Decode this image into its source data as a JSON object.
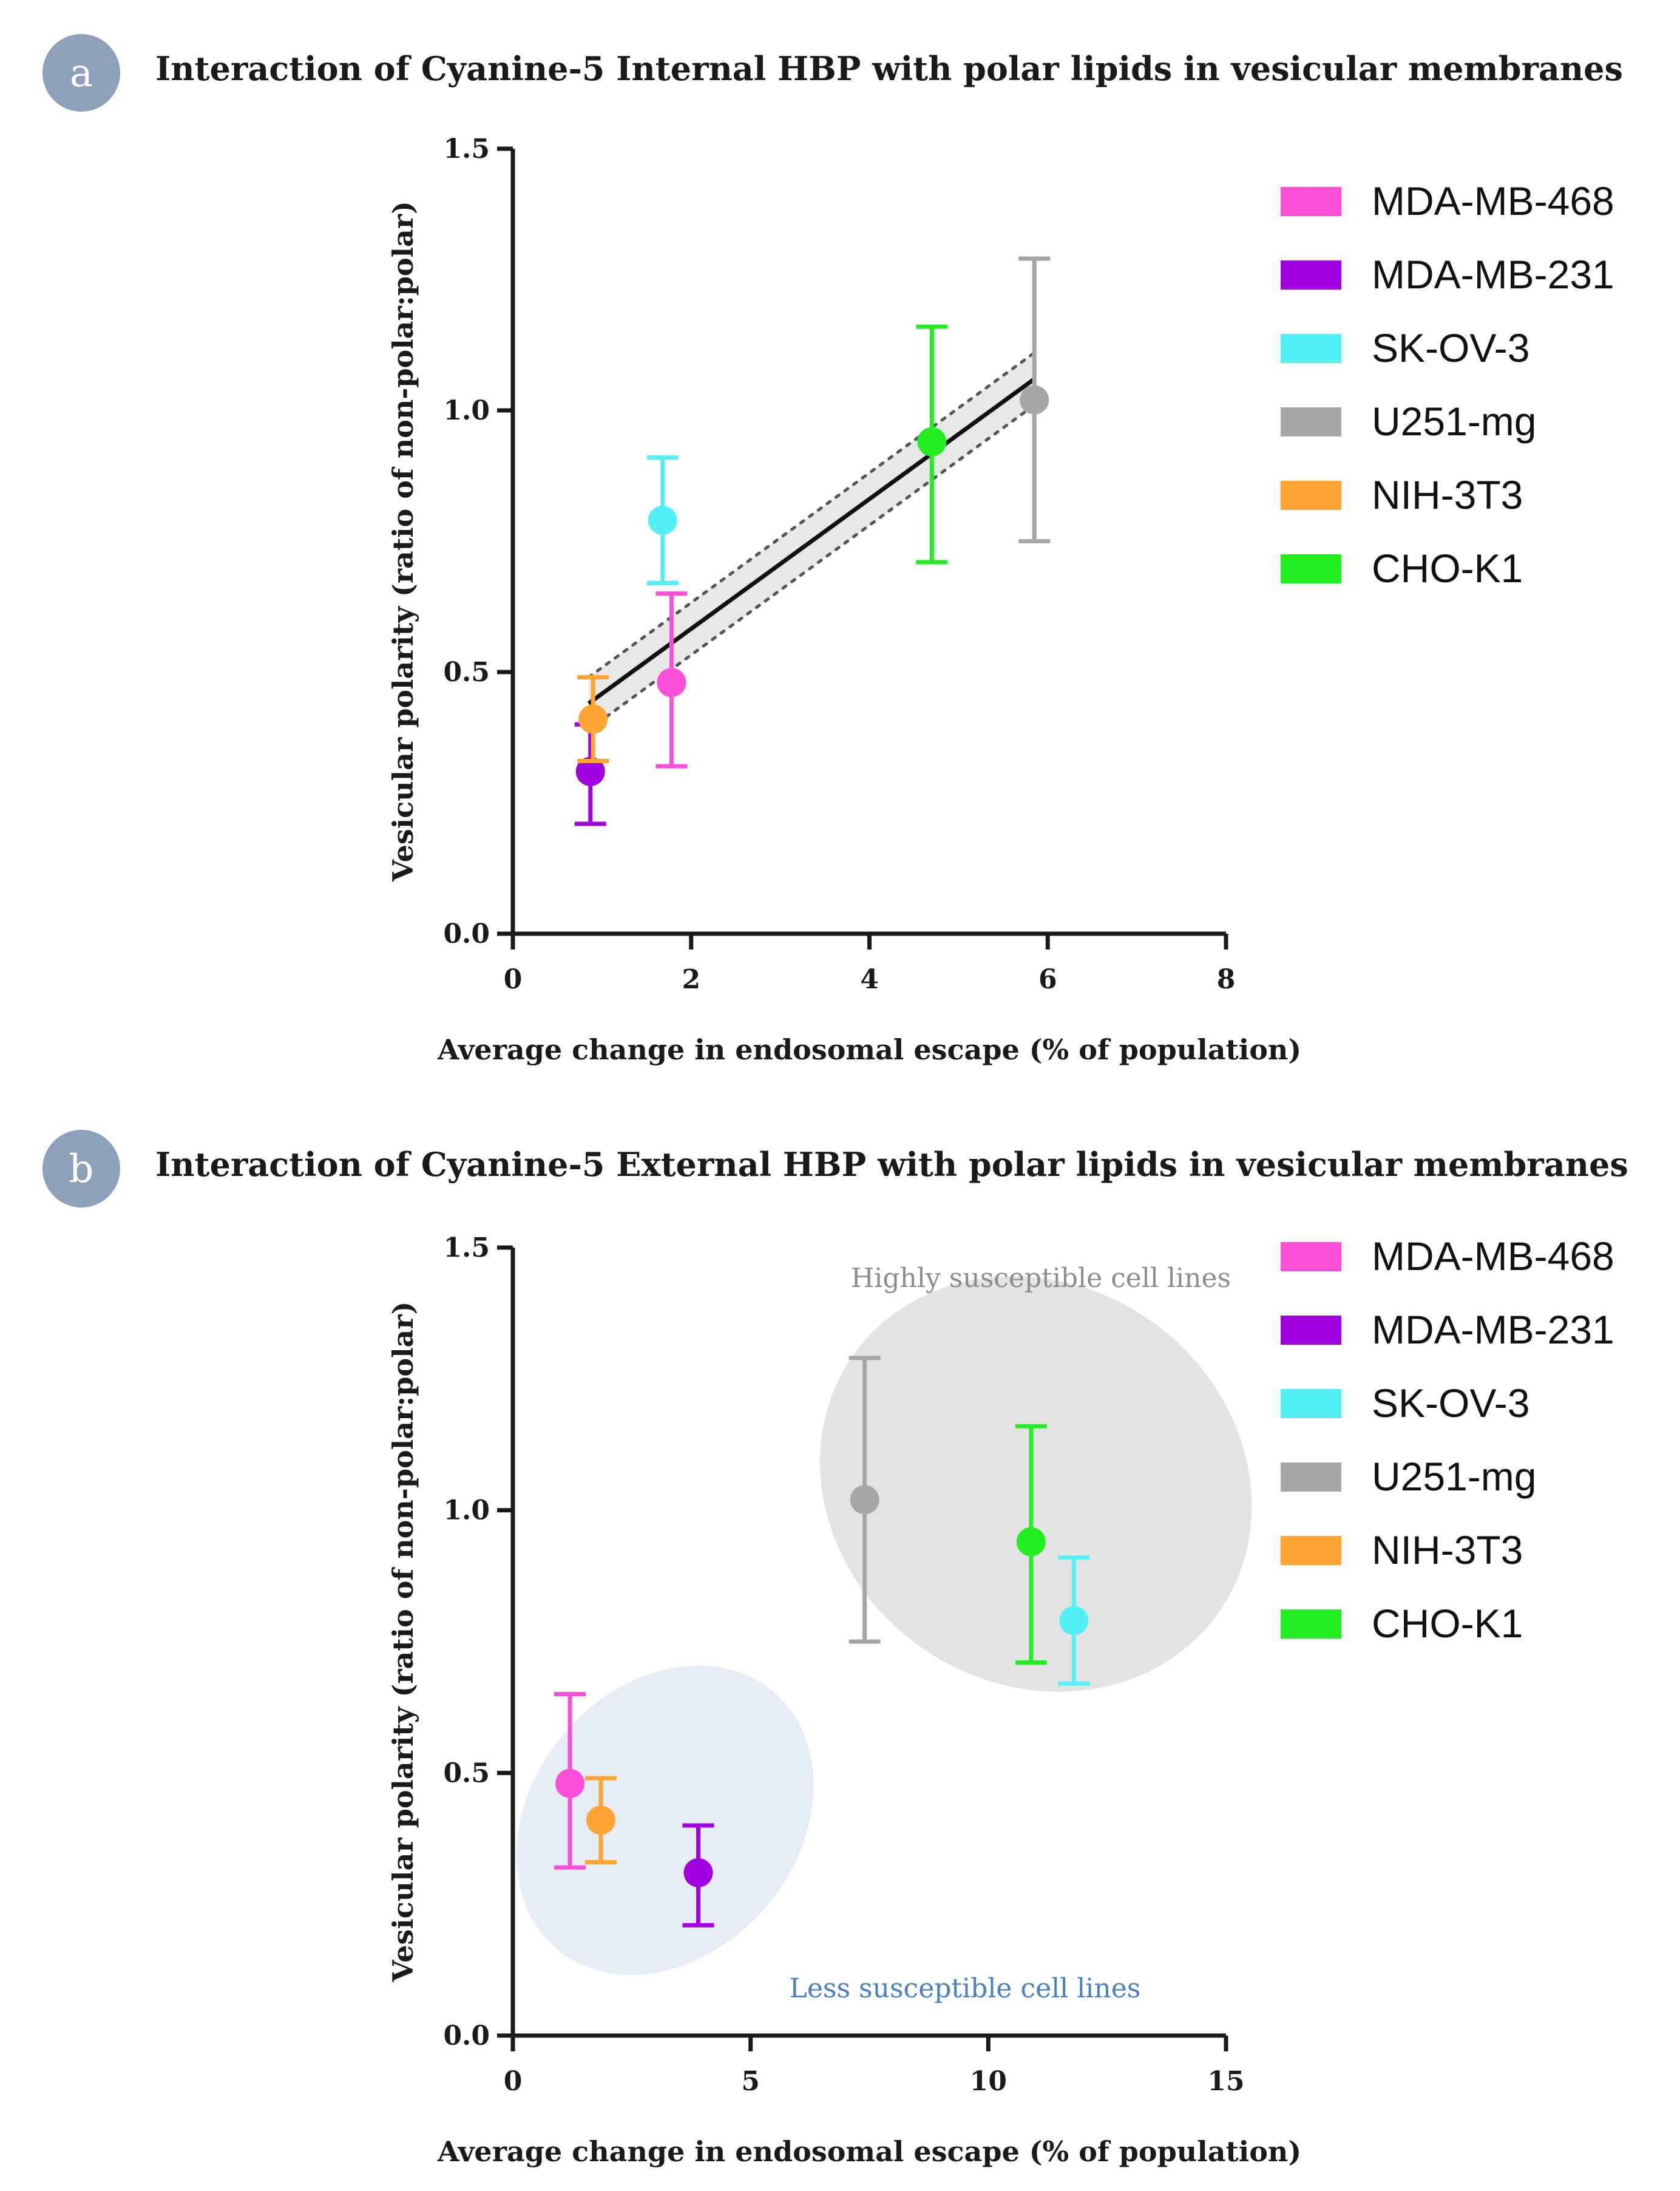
{
  "chart_data": [
    {
      "panel": "a",
      "type": "scatter",
      "title": "Interaction of Cyanine-5 Internal HBP with polar lipids in vesicular membranes",
      "xlabel": "Average change in endosomal escape (% of population)",
      "ylabel": "Vesicular polarity (ratio of non-polar:polar)",
      "xlim": [
        0,
        8
      ],
      "ylim": [
        0,
        1.5
      ],
      "xticks": [
        "0",
        "2",
        "4",
        "6",
        "8"
      ],
      "yticks": [
        "0.0",
        "0.5",
        "1.0",
        "1.5"
      ],
      "fit": {
        "x": [
          0.85,
          5.85
        ],
        "y": [
          0.44,
          1.06
        ],
        "band_halfwidth": 0.05
      },
      "series": [
        {
          "name": "MDA-MB-468",
          "color": "#ff4fd8",
          "x": 1.78,
          "y": 0.48,
          "err_low": 0.32,
          "err_high": 0.65
        },
        {
          "name": "MDA-MB-231",
          "color": "#a100e0",
          "x": 0.87,
          "y": 0.31,
          "err_low": 0.21,
          "err_high": 0.4
        },
        {
          "name": "SK-OV-3",
          "color": "#55f0f5",
          "x": 1.68,
          "y": 0.79,
          "err_low": 0.67,
          "err_high": 0.91
        },
        {
          "name": "U251-mg",
          "color": "#a6a6a6",
          "x": 5.85,
          "y": 1.02,
          "err_low": 0.75,
          "err_high": 1.29
        },
        {
          "name": "NIH-3T3",
          "color": "#ffa533",
          "x": 0.9,
          "y": 0.41,
          "err_low": 0.33,
          "err_high": 0.49
        },
        {
          "name": "CHO-K1",
          "color": "#22ee22",
          "x": 4.7,
          "y": 0.94,
          "err_low": 0.71,
          "err_high": 1.16
        }
      ],
      "legend": [
        "MDA-MB-468",
        "MDA-MB-231",
        "SK-OV-3",
        "U251-mg",
        "NIH-3T3",
        "CHO-K1"
      ]
    },
    {
      "panel": "b",
      "type": "scatter",
      "title": "Interaction of Cyanine-5 External HBP with polar lipids in vesicular membranes",
      "xlabel": "Average change in endosomal escape (% of population)",
      "ylabel": "Vesicular polarity (ratio of non-polar:polar)",
      "xlim": [
        0,
        15
      ],
      "ylim": [
        0,
        1.5
      ],
      "xticks": [
        "0",
        "5",
        "10",
        "15"
      ],
      "yticks": [
        "0.0",
        "0.5",
        "1.0",
        "1.5"
      ],
      "annotations": [
        {
          "text": "Highly susceptible cell lines",
          "color": "#8c8c8c"
        },
        {
          "text": "Less susceptible cell lines",
          "color": "#4a7fc1"
        }
      ],
      "groups": [
        {
          "cx": 11.0,
          "cy": 1.05,
          "rx": 4.7,
          "ry": 0.38,
          "color": "#e3e3e3"
        },
        {
          "cx": 3.2,
          "cy": 0.41,
          "rx": 2.8,
          "ry": 0.32,
          "color": "#e6edf6"
        }
      ],
      "series": [
        {
          "name": "MDA-MB-468",
          "color": "#ff4fd8",
          "x": 1.2,
          "y": 0.48,
          "err_low": 0.32,
          "err_high": 0.65
        },
        {
          "name": "MDA-MB-231",
          "color": "#a100e0",
          "x": 3.9,
          "y": 0.31,
          "err_low": 0.21,
          "err_high": 0.4
        },
        {
          "name": "SK-OV-3",
          "color": "#55f0f5",
          "x": 11.8,
          "y": 0.79,
          "err_low": 0.67,
          "err_high": 0.91
        },
        {
          "name": "U251-mg",
          "color": "#a6a6a6",
          "x": 7.4,
          "y": 1.02,
          "err_low": 0.75,
          "err_high": 1.29
        },
        {
          "name": "NIH-3T3",
          "color": "#ffa533",
          "x": 1.85,
          "y": 0.41,
          "err_low": 0.33,
          "err_high": 0.49
        },
        {
          "name": "CHO-K1",
          "color": "#22ee22",
          "x": 10.9,
          "y": 0.94,
          "err_low": 0.71,
          "err_high": 1.16
        }
      ],
      "legend": [
        "MDA-MB-468",
        "MDA-MB-231",
        "SK-OV-3",
        "U251-mg",
        "NIH-3T3",
        "CHO-K1"
      ]
    }
  ],
  "badges": [
    "a",
    "b"
  ],
  "badge_color": "#8da0bb"
}
